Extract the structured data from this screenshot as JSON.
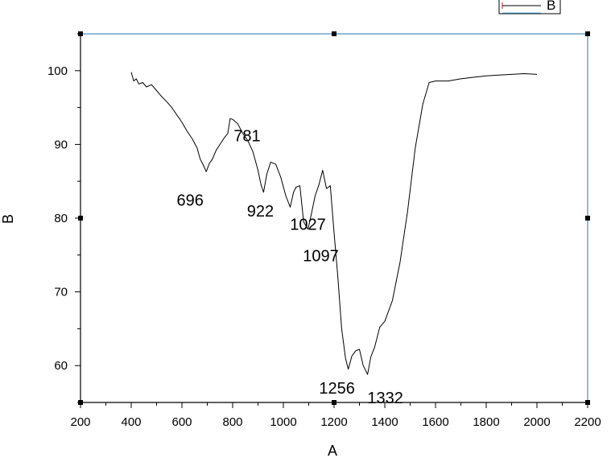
{
  "chart_data": {
    "type": "line",
    "xlabel": "A",
    "ylabel": "B",
    "xlim": [
      200,
      2200
    ],
    "ylim": [
      55,
      105
    ],
    "xticks": [
      200,
      400,
      600,
      800,
      1000,
      1200,
      1400,
      1600,
      1800,
      2000,
      2200
    ],
    "yticks": [
      60,
      70,
      80,
      90,
      100
    ],
    "grid": false,
    "legend": {
      "position": "top-right",
      "entries": [
        "B"
      ]
    },
    "series": [
      {
        "name": "B",
        "color": "#000000",
        "x": [
          400,
          410,
          420,
          430,
          445,
          460,
          480,
          500,
          520,
          540,
          560,
          580,
          600,
          620,
          640,
          660,
          672,
          684,
          696,
          708,
          720,
          735,
          750,
          765,
          781,
          790,
          800,
          820,
          840,
          860,
          880,
          900,
          912,
          922,
          935,
          950,
          970,
          990,
          1010,
          1027,
          1040,
          1050,
          1065,
          1080,
          1097,
          1110,
          1125,
          1140,
          1155,
          1170,
          1185,
          1200,
          1215,
          1230,
          1245,
          1256,
          1270,
          1285,
          1300,
          1315,
          1332,
          1345,
          1360,
          1380,
          1400,
          1430,
          1460,
          1490,
          1520,
          1550,
          1575,
          1600,
          1650,
          1700,
          1750,
          1800,
          1850,
          1900,
          1950,
          2000
        ],
        "y": [
          99.8,
          98.6,
          98.9,
          98.2,
          98.4,
          97.8,
          98.1,
          97.3,
          96.5,
          95.8,
          95.0,
          94.0,
          93.0,
          91.8,
          90.8,
          89.5,
          88.0,
          87.2,
          86.3,
          87.4,
          88.0,
          89.2,
          90.0,
          90.8,
          91.5,
          93.5,
          93.4,
          92.8,
          91.5,
          90.5,
          89.0,
          86.5,
          84.5,
          83.5,
          86.0,
          87.6,
          87.3,
          85.5,
          83.0,
          81.5,
          83.5,
          84.2,
          84.4,
          79.5,
          78.5,
          80.5,
          83.0,
          84.5,
          86.5,
          84.0,
          84.4,
          78.0,
          72.0,
          65.0,
          61.0,
          59.5,
          61.3,
          62.0,
          62.2,
          60.0,
          58.8,
          61.2,
          62.5,
          65.2,
          66.0,
          68.8,
          74.0,
          81.0,
          89.5,
          95.5,
          98.4,
          98.6,
          98.6,
          98.9,
          99.1,
          99.3,
          99.4,
          99.5,
          99.6,
          99.5
        ]
      }
    ],
    "annotations": [
      {
        "text": "696",
        "x": 696,
        "y": 86.3
      },
      {
        "text": "781",
        "x": 781,
        "y": 91.5
      },
      {
        "text": "922",
        "x": 922,
        "y": 83.5
      },
      {
        "text": "1027",
        "x": 1027,
        "y": 81.5
      },
      {
        "text": "1097",
        "x": 1097,
        "y": 78.5
      },
      {
        "text": "1256",
        "x": 1256,
        "y": 59.5
      },
      {
        "text": "1332",
        "x": 1332,
        "y": 58.8
      }
    ]
  }
}
